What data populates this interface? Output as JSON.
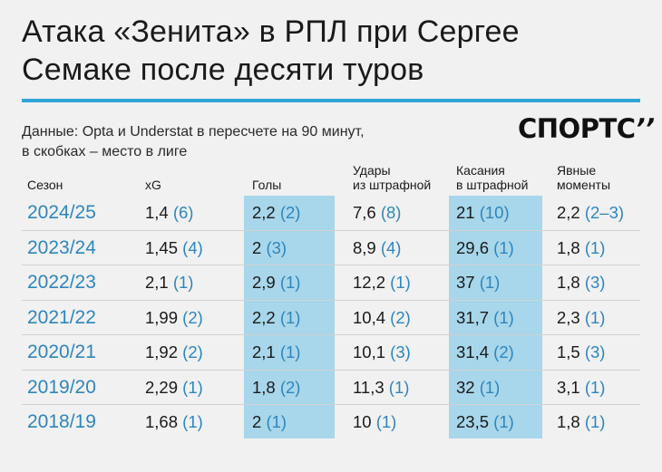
{
  "title": {
    "line1": "Атака «Зенита» в РПЛ при Сергее",
    "line2": "Семаке после десяти туров"
  },
  "source": {
    "line1": "Данные: Opta и Understat в пересчете на 90 минут,",
    "line2": "в скобках – место в лиге"
  },
  "logo": {
    "text": "СПОРТС",
    "mark": "’’"
  },
  "colors": {
    "accent": "#2ea5d8",
    "season_text": "#2e86bd",
    "highlight_band": "#a8d6ea",
    "background": "#f1f1f1"
  },
  "chart_data": {
    "type": "table",
    "columns": [
      {
        "key": "season",
        "label_lines": [
          "Сезон"
        ]
      },
      {
        "key": "xg",
        "label_lines": [
          "xG"
        ]
      },
      {
        "key": "goals",
        "label_lines": [
          "Голы"
        ]
      },
      {
        "key": "shots_box",
        "label_lines": [
          "Удары",
          "из штрафной"
        ]
      },
      {
        "key": "touches_box",
        "label_lines": [
          "Касания",
          "в штрафной"
        ]
      },
      {
        "key": "big_chances",
        "label_lines": [
          "Явные",
          "моменты"
        ]
      }
    ],
    "highlighted_columns": [
      "goals",
      "touches_box"
    ],
    "rows": [
      {
        "season": "2024/25",
        "xg": {
          "value": "1,4",
          "rank": "(6)"
        },
        "goals": {
          "value": "2,2",
          "rank": "(2)"
        },
        "shots_box": {
          "value": "7,6",
          "rank": "(8)"
        },
        "touches_box": {
          "value": "21",
          "rank": "(10)"
        },
        "big_chances": {
          "value": "2,2",
          "rank": "(2–3)"
        }
      },
      {
        "season": "2023/24",
        "xg": {
          "value": "1,45",
          "rank": "(4)"
        },
        "goals": {
          "value": "2",
          "rank": "(3)"
        },
        "shots_box": {
          "value": "8,9",
          "rank": "(4)"
        },
        "touches_box": {
          "value": "29,6",
          "rank": "(1)"
        },
        "big_chances": {
          "value": "1,8",
          "rank": "(1)"
        }
      },
      {
        "season": "2022/23",
        "xg": {
          "value": "2,1",
          "rank": "(1)"
        },
        "goals": {
          "value": "2,9",
          "rank": "(1)"
        },
        "shots_box": {
          "value": "12,2",
          "rank": "(1)"
        },
        "touches_box": {
          "value": "37",
          "rank": "(1)"
        },
        "big_chances": {
          "value": "1,8",
          "rank": "(3)"
        }
      },
      {
        "season": "2021/22",
        "xg": {
          "value": "1,99",
          "rank": "(2)"
        },
        "goals": {
          "value": "2,2",
          "rank": "(1)"
        },
        "shots_box": {
          "value": "10,4",
          "rank": "(2)"
        },
        "touches_box": {
          "value": "31,7",
          "rank": "(1)"
        },
        "big_chances": {
          "value": "2,3",
          "rank": "(1)"
        }
      },
      {
        "season": "2020/21",
        "xg": {
          "value": "1,92",
          "rank": "(2)"
        },
        "goals": {
          "value": "2,1",
          "rank": "(1)"
        },
        "shots_box": {
          "value": "10,1",
          "rank": "(3)"
        },
        "touches_box": {
          "value": "31,4",
          "rank": "(2)"
        },
        "big_chances": {
          "value": "1,5",
          "rank": "(3)"
        }
      },
      {
        "season": "2019/20",
        "xg": {
          "value": "2,29",
          "rank": "(1)"
        },
        "goals": {
          "value": "1,8",
          "rank": "(2)"
        },
        "shots_box": {
          "value": "11,3",
          "rank": "(1)"
        },
        "touches_box": {
          "value": "32",
          "rank": "(1)"
        },
        "big_chances": {
          "value": "3,1",
          "rank": "(1)"
        }
      },
      {
        "season": "2018/19",
        "xg": {
          "value": "1,68",
          "rank": "(1)"
        },
        "goals": {
          "value": "2",
          "rank": "(1)"
        },
        "shots_box": {
          "value": "10",
          "rank": "(1)"
        },
        "touches_box": {
          "value": "23,5",
          "rank": "(1)"
        },
        "big_chances": {
          "value": "1,8",
          "rank": "(1)"
        }
      }
    ]
  }
}
